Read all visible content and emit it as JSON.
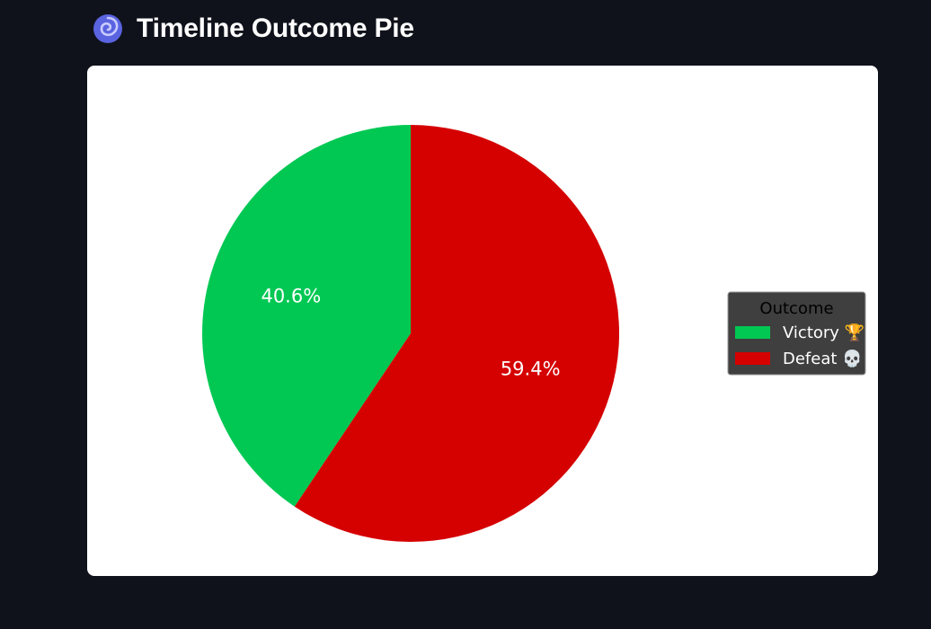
{
  "header": {
    "title": "Timeline Outcome Pie",
    "icon": "cyclone-icon",
    "icon_color": "#5a63e0"
  },
  "chart_data": {
    "type": "pie",
    "title": "",
    "categories": [
      "Victory 🏆",
      "Defeat 💀"
    ],
    "values": [
      40.6,
      59.4
    ],
    "value_labels": [
      "40.6%",
      "59.4%"
    ],
    "colors": [
      "#00c853",
      "#d50000"
    ],
    "start_angle_deg": 90,
    "direction": "counterclockwise",
    "legend": {
      "title": "Outcome",
      "placement": "center-right",
      "background": "#3f3f3f"
    }
  }
}
